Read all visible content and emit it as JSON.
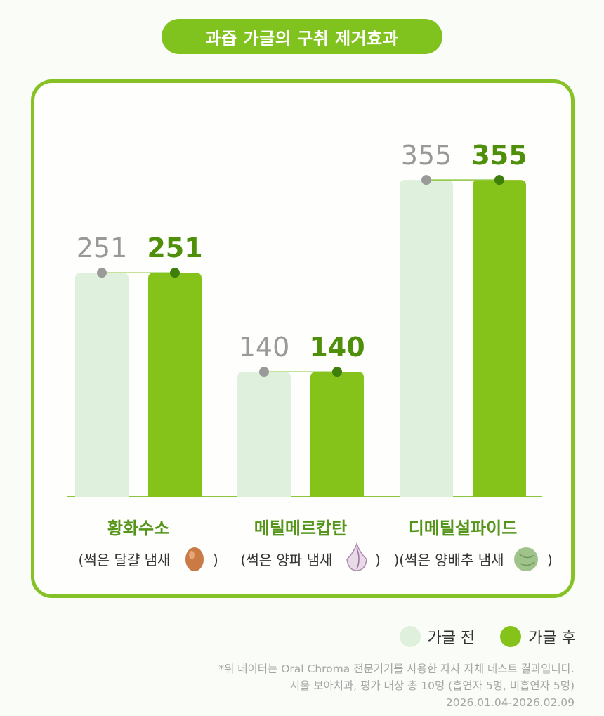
{
  "title": "과즙 가글의 구취 제거효과",
  "colors": {
    "before": "#dff0dc",
    "after": "#86c31a",
    "before_text": "#999999",
    "after_text": "#4f8f0a",
    "category_text": "#55951a"
  },
  "chart_data": {
    "type": "bar",
    "title": "과즙 가글의 구취 제거효과",
    "categories": [
      "황화수소",
      "메틸메르캅탄",
      "디메틸설파이드"
    ],
    "category_notes": [
      "(썩은 달걀 냄새",
      "(썩은 양파 냄새",
      ")(썩은 양배추 냄새"
    ],
    "note_close": ")",
    "note_icons": [
      "egg-icon",
      "onion-icon",
      "cabbage-icon"
    ],
    "series": [
      {
        "name": "가글 전",
        "values": [
          251,
          140,
          355
        ]
      },
      {
        "name": "가글 후",
        "values": [
          251,
          140,
          355
        ]
      }
    ],
    "ylim": [
      0,
      400
    ],
    "legend_position": "bottom-right",
    "grid": false
  },
  "legend": {
    "before": "가글 전",
    "after": "가글 후"
  },
  "footnote": {
    "line1": "*위 데이터는 Oral Chroma 전문기기를 사용한 자사 자체 테스트 결과입니다.",
    "line2": "서울 보아치과, 평가 대상 총 10명 (흡연자 5명, 비흡연자 5명)",
    "line3": "2026.01.04-2026.02.09"
  }
}
